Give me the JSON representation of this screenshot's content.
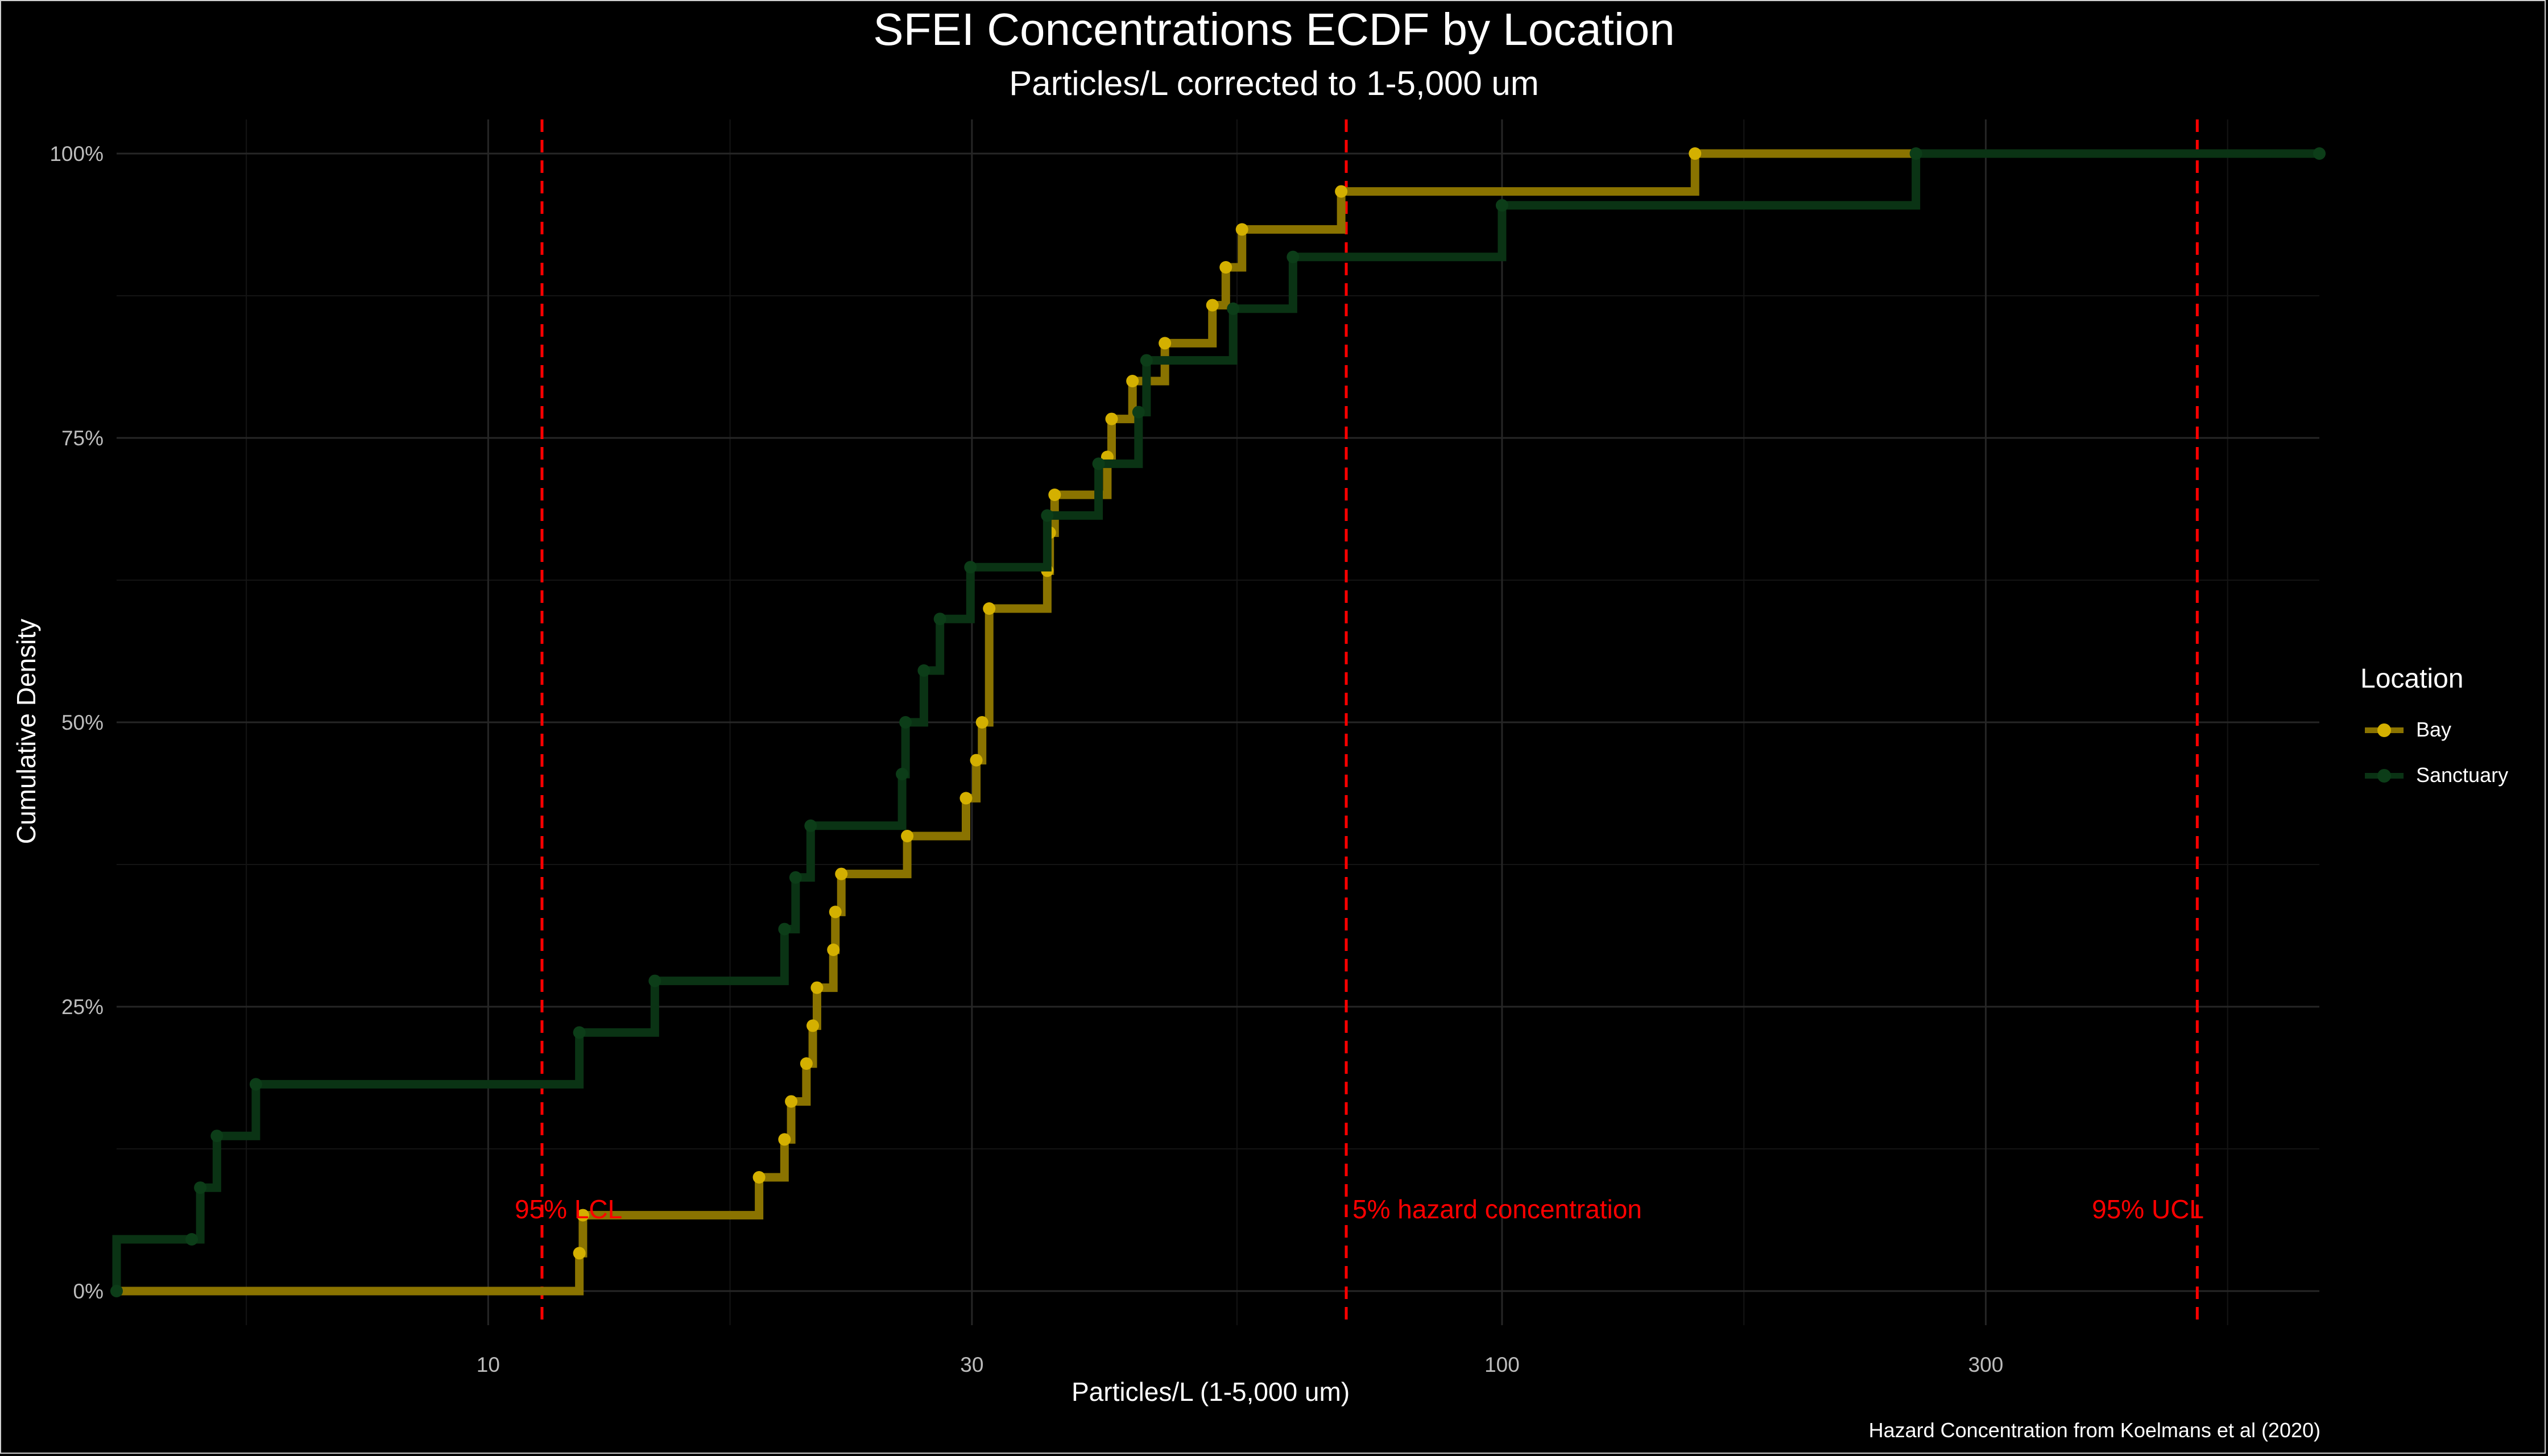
{
  "chart_data": {
    "type": "line",
    "title": "SFEI Concentrations ECDF by Location",
    "subtitle": "Particles/L corrected to 1-5,000 um",
    "xlabel": "Particles/L (1-5,000 um)",
    "ylabel": "Cumulative Density",
    "caption": "Hazard Concentration from Koelmans et al (2020)",
    "x_scale": "log10",
    "xlim": [
      4.3,
      640
    ],
    "ylim": [
      -0.03,
      1.03
    ],
    "x_ticks": [
      10,
      30,
      100,
      300
    ],
    "x_tick_labels": [
      "10",
      "30",
      "100",
      "300"
    ],
    "y_ticks": [
      0,
      0.25,
      0.5,
      0.75,
      1
    ],
    "y_tick_labels": [
      "0%",
      "25%",
      "50%",
      "75%",
      "100%"
    ],
    "legend": {
      "title": "Location",
      "position": "right"
    },
    "series": [
      {
        "name": "Bay",
        "color": "#d4b000",
        "x": [
          12.3,
          12.4,
          18.5,
          19.6,
          19.9,
          20.6,
          20.9,
          21.1,
          21.9,
          22.0,
          22.3,
          25.9,
          29.6,
          30.3,
          30.7,
          31.2,
          35.6,
          35.8,
          36.2,
          40.8,
          41.2,
          43.2,
          46.5,
          51.8,
          53.4,
          55.4,
          69.4,
          155
        ],
        "y": [
          0.0333,
          0.0667,
          0.1,
          0.1333,
          0.1667,
          0.2,
          0.2333,
          0.2667,
          0.3,
          0.3333,
          0.3667,
          0.4,
          0.4333,
          0.4667,
          0.5,
          0.6,
          0.6333,
          0.6667,
          0.7,
          0.7333,
          0.7667,
          0.8,
          0.8333,
          0.8667,
          0.9,
          0.9333,
          0.9667,
          1.0
        ]
      },
      {
        "name": "Sanctuary",
        "color": "#0c3d18",
        "x": [
          4.3,
          5.1,
          5.2,
          5.4,
          5.9,
          12.3,
          14.6,
          19.6,
          20.1,
          20.8,
          25.6,
          25.8,
          26.9,
          27.9,
          29.9,
          35.6,
          40.0,
          43.8,
          44.6,
          54.3,
          62.2,
          100,
          256
        ],
        "y": [
          0.0,
          0.0455,
          0.0909,
          0.1364,
          0.1818,
          0.2273,
          0.2727,
          0.3182,
          0.3636,
          0.4091,
          0.4545,
          0.5,
          0.5455,
          0.5909,
          0.6364,
          0.6818,
          0.7273,
          0.7727,
          0.8182,
          0.8636,
          0.9091,
          0.9545,
          1.0
        ]
      }
    ],
    "reference_lines": [
      {
        "x": 11.3,
        "label": "95% LCL",
        "color": "#ff0000",
        "style": "dashed"
      },
      {
        "x": 70.2,
        "label": "5% hazard concentration",
        "color": "#ff0000",
        "style": "dashed"
      },
      {
        "x": 485,
        "label": "95% UCL",
        "color": "#ff0000",
        "style": "dashed"
      }
    ],
    "grid": true,
    "background": "#000000"
  }
}
